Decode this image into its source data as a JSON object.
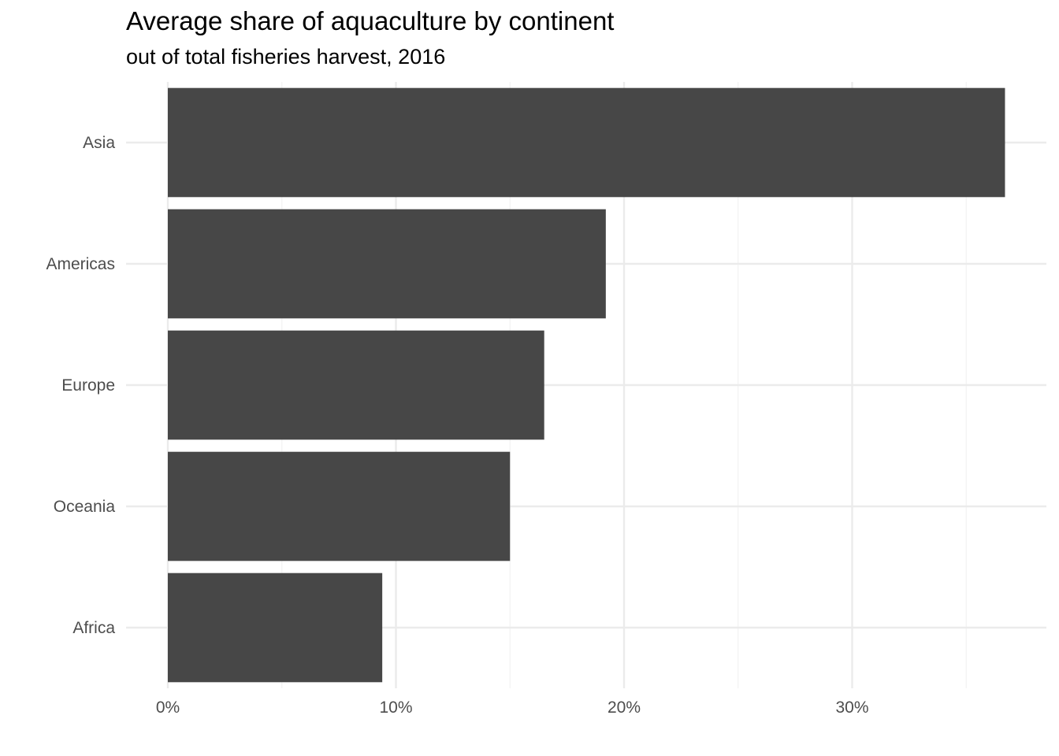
{
  "chart_data": {
    "type": "bar",
    "orientation": "horizontal",
    "title": "Average share of aquaculture by continent",
    "subtitle": "out of total fisheries harvest, 2016",
    "xlabel": "",
    "ylabel": "",
    "categories": [
      "Asia",
      "Americas",
      "Europe",
      "Oceania",
      "Africa"
    ],
    "values": [
      36.7,
      19.2,
      16.5,
      15.0,
      9.4
    ],
    "value_unit": "%",
    "xlim": [
      0,
      38.1
    ],
    "x_ticks": [
      0,
      10,
      20,
      30
    ],
    "x_tick_labels": [
      "0%",
      "10%",
      "20%",
      "30%"
    ],
    "x_minor_ticks": [
      5,
      15,
      25,
      35
    ],
    "grid": true,
    "legend": "none",
    "colors": {
      "bar": "#474747",
      "grid_major": "#ebebeb",
      "grid_minor": "#f2f2f2",
      "text": "#4d4d4d",
      "background": "#ffffff"
    }
  }
}
